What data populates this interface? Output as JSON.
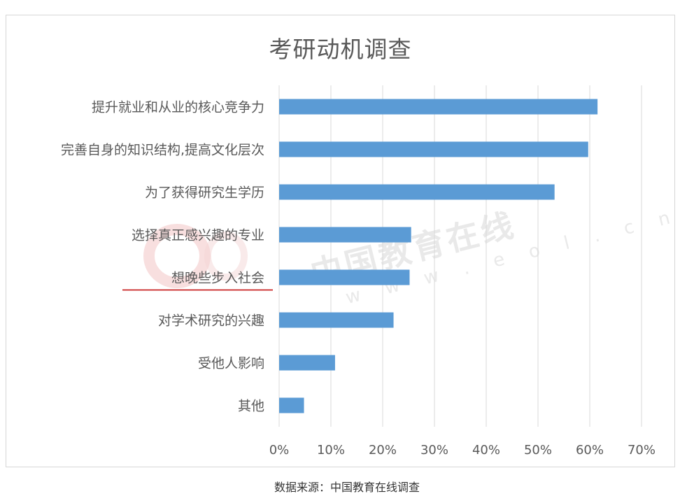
{
  "source_note": "数据来源：中国教育在线调查",
  "watermark": {
    "text": "中国教育在线",
    "url_text": "w w w . e o l . c n"
  },
  "colors": {
    "bar": "#5b9bd5",
    "grid": "#d9d9d9",
    "underline": "#c00000"
  },
  "chart_data": {
    "type": "bar",
    "orientation": "horizontal",
    "title": "考研动机调查",
    "categories": [
      "提升就业和从业的核心竞争力",
      "完善自身的知识结构,提高文化层次",
      "为了获得研究生学历",
      "选择真正感兴趣的专业",
      "想晚些步入社会",
      "对学术研究的兴趣",
      "受他人影响",
      "其他"
    ],
    "values": [
      0.615,
      0.597,
      0.532,
      0.255,
      0.252,
      0.221,
      0.108,
      0.048
    ],
    "xlim": [
      0,
      0.7
    ],
    "xticks": [
      "0%",
      "10%",
      "20%",
      "30%",
      "40%",
      "50%",
      "60%",
      "70%"
    ],
    "grid": true,
    "legend": "none",
    "underlined_category_index": 4
  }
}
